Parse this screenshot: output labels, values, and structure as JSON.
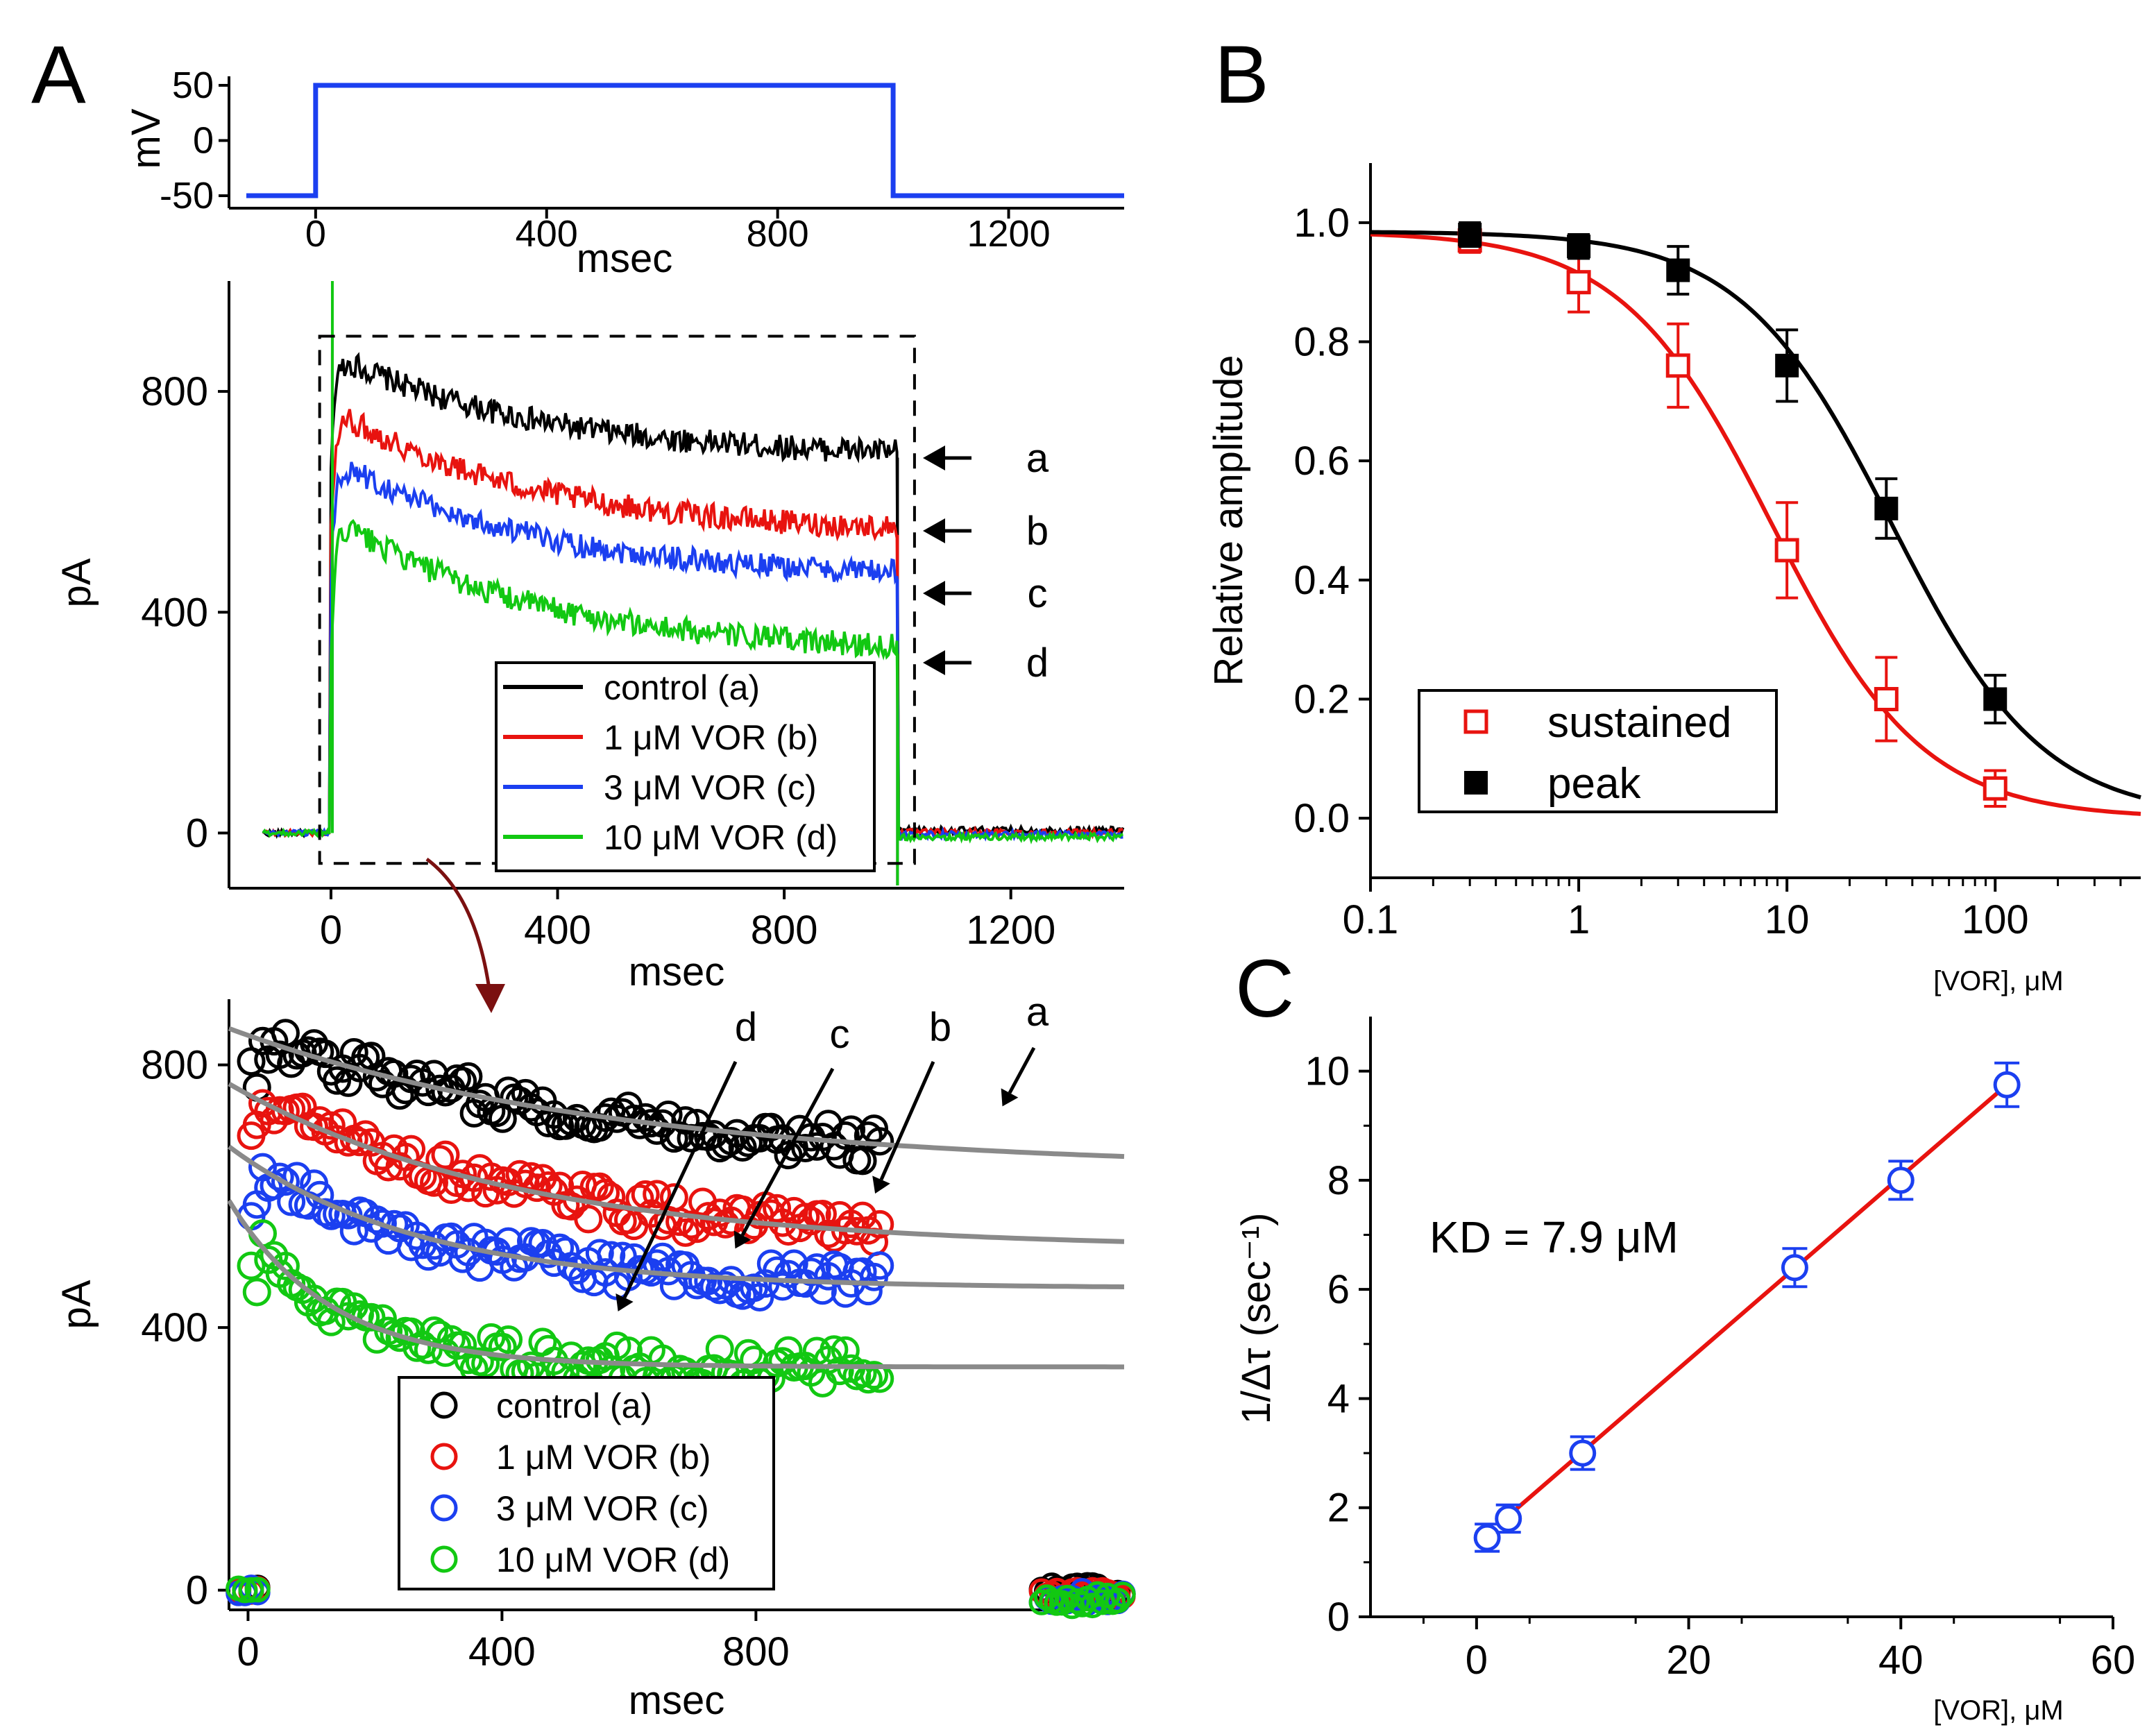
{
  "colors": {
    "black": "#000000",
    "red": "#e8130f",
    "blue": "#1b3ff0",
    "green": "#12c812",
    "gray": "#8a8a8a",
    "darkred": "#7b1010"
  },
  "chart_data": [
    {
      "id": "A-protocol",
      "panel_label": "A",
      "type": "line",
      "title": "",
      "xlabel": "msec",
      "ylabel": "mV",
      "xlim": [
        -150,
        1400
      ],
      "ylim": [
        -55,
        55
      ],
      "xticks": [
        0,
        400,
        800,
        1200
      ],
      "yticks": [
        50,
        0,
        -50
      ],
      "series": [
        {
          "name": "voltage step",
          "color": "#1b3ff0",
          "points": [
            [
              -120,
              -50
            ],
            [
              0,
              -50
            ],
            [
              0,
              50
            ],
            [
              1000,
              50
            ],
            [
              1000,
              -50
            ],
            [
              1400,
              -50
            ]
          ]
        }
      ]
    },
    {
      "id": "A-currents",
      "type": "line",
      "title": "",
      "xlabel": "msec",
      "ylabel": "pA",
      "xlim": [
        -180,
        1400
      ],
      "ylim": [
        -100,
        1000
      ],
      "xticks": [
        0,
        400,
        800,
        1200
      ],
      "yticks": [
        0,
        400,
        800
      ],
      "series": [
        {
          "name": "control (a)",
          "color": "#000000",
          "peak": 870,
          "end": 680
        },
        {
          "name": "1 μM VOR (b)",
          "color": "#e8130f",
          "peak": 770,
          "end": 540
        },
        {
          "name": "3 μM VOR (c)",
          "color": "#1b3ff0",
          "peak": 680,
          "end": 460
        },
        {
          "name": "10 μM VOR (d)",
          "color": "#12c812",
          "peak": 575,
          "end": 325
        }
      ],
      "trace_labels": [
        "a",
        "b",
        "c",
        "d"
      ],
      "legend_position": "lower-right"
    },
    {
      "id": "A-fits",
      "type": "scatter",
      "title": "",
      "xlabel": "msec",
      "ylabel": "pA",
      "xlim": [
        -30,
        1380
      ],
      "ylim": [
        -30,
        900
      ],
      "xticks": [
        0,
        400,
        800
      ],
      "yticks": [
        0,
        400,
        800
      ],
      "series": [
        {
          "name": "control (a)",
          "color": "#000000",
          "fit_start": 845,
          "fit_plateau": 640,
          "tau_ms": 600
        },
        {
          "name": "1 μM VOR (b)",
          "color": "#e8130f",
          "fit_start": 755,
          "fit_plateau": 520,
          "tau_ms": 450
        },
        {
          "name": "3 μM VOR (c)",
          "color": "#1b3ff0",
          "fit_start": 655,
          "fit_plateau": 460,
          "tau_ms": 300
        },
        {
          "name": "10 μM VOR (d)",
          "color": "#12c812",
          "fit_start": 550,
          "fit_plateau": 340,
          "tau_ms": 160
        }
      ],
      "trace_labels": [
        "a",
        "b",
        "c",
        "d"
      ],
      "legend_position": "lower-middle"
    },
    {
      "id": "B",
      "panel_label": "B",
      "type": "scatter",
      "title": "",
      "xlabel": "[VOR], μM",
      "ylabel": "Relative amplitude",
      "xscale": "log",
      "xlim": [
        0.1,
        500
      ],
      "ylim": [
        -0.1,
        1.1
      ],
      "xticks": [
        0.1,
        1,
        10,
        100
      ],
      "xtick_labels": [
        "0.1",
        "1",
        "10",
        "100"
      ],
      "yticks": [
        0.0,
        0.2,
        0.4,
        0.6,
        0.8,
        1.0
      ],
      "ytick_labels": [
        "0.0",
        "0.2",
        "0.4",
        "0.6",
        "0.8",
        "1.0"
      ],
      "series": [
        {
          "name": "sustained",
          "marker": "open-square",
          "color": "#e8130f",
          "x": [
            0.3,
            1,
            3,
            10,
            30,
            100
          ],
          "y": [
            0.97,
            0.9,
            0.76,
            0.45,
            0.2,
            0.05
          ],
          "err": [
            0.02,
            0.05,
            0.07,
            0.08,
            0.07,
            0.03
          ],
          "fit": {
            "IC50": 8.5,
            "n": 1.2,
            "top": 0.985
          }
        },
        {
          "name": "peak",
          "marker": "filled-square",
          "color": "#000000",
          "x": [
            0.3,
            1,
            3,
            10,
            30,
            100
          ],
          "y": [
            0.98,
            0.96,
            0.92,
            0.76,
            0.52,
            0.2
          ],
          "err": [
            0.02,
            0.02,
            0.04,
            0.06,
            0.05,
            0.04
          ],
          "fit": {
            "IC50": 32,
            "n": 1.2,
            "top": 0.985
          }
        }
      ],
      "legend_position": "lower-left"
    },
    {
      "id": "C",
      "panel_label": "C",
      "type": "scatter",
      "title": "",
      "xlabel": "[VOR], μM",
      "ylabel": "1/Δτ (sec⁻¹)",
      "xlim": [
        -10,
        60
      ],
      "ylim": [
        0,
        11
      ],
      "xticks": [
        0,
        20,
        40,
        60
      ],
      "yticks": [
        0,
        2,
        4,
        6,
        8,
        10
      ],
      "series": [
        {
          "name": "1/Δτ",
          "marker": "open-circle",
          "color": "#1b3ff0",
          "x": [
            1,
            3,
            10,
            30,
            40,
            50
          ],
          "y": [
            1.45,
            1.8,
            3.0,
            6.4,
            8.0,
            9.75
          ],
          "err": [
            0.25,
            0.25,
            0.3,
            0.35,
            0.35,
            0.4
          ]
        }
      ],
      "fit": {
        "type": "linear",
        "color": "#e8130f",
        "x": [
          3,
          50
        ],
        "y": [
          1.85,
          9.75
        ]
      },
      "annotation": "KD = 7.9 μM"
    }
  ]
}
